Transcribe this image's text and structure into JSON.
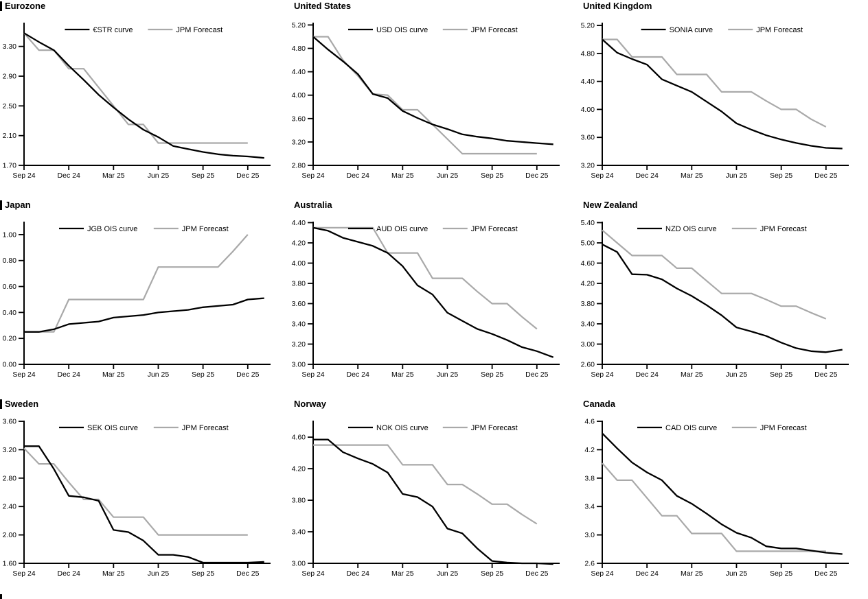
{
  "page": {
    "background": "#ffffff"
  },
  "colors": {
    "ois_line": "#000000",
    "forecast_line": "#a9a9a9",
    "axis": "#000000"
  },
  "chart_data": [
    {
      "type": "line",
      "title": "Eurozone",
      "section_bar": true,
      "x_tick_labels": [
        "Sep 24",
        "Dec 24",
        "Mar 25",
        "Jun 25",
        "Sep 25",
        "Dec 25"
      ],
      "x_monthly_range": "Sep 2024 to Dec 2025",
      "ylim": [
        1.7,
        3.62
      ],
      "y_ticks": [
        1.7,
        2.1,
        2.5,
        2.9,
        3.3
      ],
      "y_tick_decimals": 2,
      "legend_position": "top",
      "grid": false,
      "series": [
        {
          "name": "€STR curve",
          "color": "#000000",
          "monthly_values": [
            3.48,
            3.36,
            3.25,
            3.04,
            2.85,
            2.65,
            2.48,
            2.32,
            2.18,
            2.08,
            1.96,
            1.92,
            1.88,
            1.85,
            1.83,
            1.82
          ],
          "tail_value": 1.8
        },
        {
          "name": "JPM Forecast",
          "color": "#a9a9a9",
          "monthly_values": [
            3.48,
            3.25,
            3.25,
            3.0,
            3.0,
            2.75,
            2.5,
            2.25,
            2.25,
            2.0,
            2.0,
            2.0,
            2.0,
            2.0,
            2.0,
            2.0
          ]
        }
      ]
    },
    {
      "type": "line",
      "title": "United States",
      "section_bar": false,
      "x_tick_labels": [
        "Sep 24",
        "Dec 24",
        "Mar 25",
        "Jun 25",
        "Sep 25",
        "Dec 25"
      ],
      "x_monthly_range": "Sep 2024 to Dec 2025",
      "ylim": [
        2.8,
        5.24
      ],
      "y_ticks": [
        2.8,
        3.2,
        3.6,
        4.0,
        4.4,
        4.8,
        5.2
      ],
      "y_tick_decimals": 2,
      "legend_position": "top",
      "grid": false,
      "series": [
        {
          "name": "USD OIS curve",
          "color": "#000000",
          "monthly_values": [
            5.0,
            4.78,
            4.58,
            4.36,
            4.02,
            3.95,
            3.73,
            3.61,
            3.5,
            3.42,
            3.33,
            3.29,
            3.26,
            3.22,
            3.2,
            3.18
          ],
          "tail_value": 3.16
        },
        {
          "name": "JPM Forecast",
          "color": "#a9a9a9",
          "monthly_values": [
            5.0,
            5.0,
            4.6,
            4.33,
            4.02,
            4.0,
            3.75,
            3.75,
            3.5,
            3.25,
            3.0,
            3.0,
            3.0,
            3.0,
            3.0,
            3.0
          ]
        }
      ]
    },
    {
      "type": "line",
      "title": "United Kingdom",
      "section_bar": false,
      "x_tick_labels": [
        "Sep 24",
        "Dec 24",
        "Mar 25",
        "Jun 25",
        "Sep 25",
        "Dec 25"
      ],
      "x_monthly_range": "Sep 2024 to Dec 2025",
      "ylim": [
        3.2,
        5.24
      ],
      "y_ticks": [
        3.2,
        3.6,
        4.0,
        4.4,
        4.8,
        5.2
      ],
      "y_tick_decimals": 2,
      "legend_position": "top",
      "grid": false,
      "series": [
        {
          "name": "SONIA curve",
          "color": "#000000",
          "monthly_values": [
            5.0,
            4.81,
            4.72,
            4.64,
            4.43,
            4.34,
            4.25,
            4.11,
            3.97,
            3.8,
            3.71,
            3.63,
            3.57,
            3.52,
            3.48,
            3.45
          ],
          "tail_value": 3.44
        },
        {
          "name": "JPM Forecast",
          "color": "#a9a9a9",
          "monthly_values": [
            5.0,
            5.0,
            4.75,
            4.75,
            4.75,
            4.5,
            4.5,
            4.5,
            4.25,
            4.25,
            4.25,
            4.12,
            4.0,
            4.0,
            3.86,
            3.75
          ]
        }
      ]
    },
    {
      "type": "line",
      "title": "Japan",
      "section_bar": true,
      "x_tick_labels": [
        "Sep 24",
        "Dec 24",
        "Mar 25",
        "Jun 25",
        "Sep 25",
        "Dec 25"
      ],
      "x_monthly_range": "Sep 2024 to Dec 2025",
      "ylim": [
        0.0,
        1.1
      ],
      "y_ticks": [
        0.0,
        0.2,
        0.4,
        0.6,
        0.8,
        1.0
      ],
      "y_tick_decimals": 2,
      "legend_position": "top",
      "grid": false,
      "series": [
        {
          "name": "JGB OIS curve",
          "color": "#000000",
          "monthly_values": [
            0.25,
            0.25,
            0.27,
            0.31,
            0.32,
            0.33,
            0.36,
            0.37,
            0.38,
            0.4,
            0.41,
            0.42,
            0.44,
            0.45,
            0.46,
            0.5
          ],
          "tail_value": 0.51
        },
        {
          "name": "JPM Forecast",
          "color": "#a9a9a9",
          "monthly_values": [
            0.25,
            0.25,
            0.25,
            0.5,
            0.5,
            0.5,
            0.5,
            0.5,
            0.5,
            0.75,
            0.75,
            0.75,
            0.75,
            0.75,
            0.87,
            1.0
          ]
        }
      ]
    },
    {
      "type": "line",
      "title": "Australia",
      "section_bar": false,
      "x_tick_labels": [
        "Sep 24",
        "Dec 24",
        "Mar 25",
        "Jun 25",
        "Sep 25",
        "Dec 25"
      ],
      "x_monthly_range": "Sep 2024 to Dec 2025",
      "ylim": [
        3.0,
        4.41
      ],
      "y_ticks": [
        3.0,
        3.2,
        3.4,
        3.6,
        3.8,
        4.0,
        4.2,
        4.4
      ],
      "y_tick_decimals": 2,
      "legend_position": "top",
      "grid": false,
      "series": [
        {
          "name": "AUD OIS curve",
          "color": "#000000",
          "monthly_values": [
            4.35,
            4.32,
            4.25,
            4.21,
            4.17,
            4.1,
            3.97,
            3.78,
            3.69,
            3.51,
            3.43,
            3.35,
            3.3,
            3.24,
            3.17,
            3.13
          ],
          "tail_value": 3.07
        },
        {
          "name": "JPM Forecast",
          "color": "#a9a9a9",
          "monthly_values": [
            4.35,
            4.35,
            4.35,
            4.35,
            4.35,
            4.1,
            4.1,
            4.1,
            3.85,
            3.85,
            3.85,
            3.72,
            3.6,
            3.6,
            3.47,
            3.35
          ]
        }
      ]
    },
    {
      "type": "line",
      "title": "New Zealand",
      "section_bar": false,
      "x_tick_labels": [
        "Sep 24",
        "Dec 24",
        "Mar 25",
        "Jun 25",
        "Sep 25",
        "Dec 25"
      ],
      "x_monthly_range": "Sep 2024 to Dec 2025",
      "ylim": [
        2.6,
        5.42
      ],
      "y_ticks": [
        2.6,
        3.0,
        3.4,
        3.8,
        4.2,
        4.6,
        5.0,
        5.4
      ],
      "y_tick_decimals": 2,
      "legend_position": "top",
      "grid": false,
      "series": [
        {
          "name": "NZD OIS curve",
          "color": "#000000",
          "monthly_values": [
            4.97,
            4.82,
            4.38,
            4.37,
            4.28,
            4.1,
            3.95,
            3.77,
            3.57,
            3.33,
            3.25,
            3.16,
            3.03,
            2.92,
            2.86,
            2.84
          ],
          "tail_value": 2.89
        },
        {
          "name": "JPM Forecast",
          "color": "#a9a9a9",
          "monthly_values": [
            5.25,
            5.0,
            4.75,
            4.75,
            4.75,
            4.5,
            4.5,
            4.25,
            4.0,
            4.0,
            4.0,
            3.88,
            3.75,
            3.75,
            3.62,
            3.5
          ]
        }
      ]
    },
    {
      "type": "line",
      "title": "Sweden",
      "section_bar": true,
      "x_tick_labels": [
        "Sep 24",
        "Dec 24",
        "Mar 25",
        "Jun 25",
        "Sep 25",
        "Dec 25"
      ],
      "x_monthly_range": "Sep 2024 to Dec 2025",
      "ylim": [
        1.6,
        3.61
      ],
      "y_ticks": [
        1.6,
        2.0,
        2.4,
        2.8,
        3.2,
        3.6
      ],
      "y_tick_decimals": 2,
      "legend_position": "top",
      "grid": false,
      "series": [
        {
          "name": "SEK OIS curve",
          "color": "#000000",
          "monthly_values": [
            3.25,
            3.25,
            2.93,
            2.55,
            2.53,
            2.48,
            2.07,
            2.04,
            1.92,
            1.72,
            1.72,
            1.69,
            1.61,
            1.61,
            1.61,
            1.61
          ],
          "tail_value": 1.62
        },
        {
          "name": "JPM Forecast",
          "color": "#a9a9a9",
          "monthly_values": [
            3.22,
            3.0,
            3.0,
            2.74,
            2.5,
            2.5,
            2.25,
            2.25,
            2.25,
            2.0,
            2.0,
            2.0,
            2.0,
            2.0,
            2.0,
            2.0
          ]
        }
      ]
    },
    {
      "type": "line",
      "title": "Norway",
      "section_bar": false,
      "x_tick_labels": [
        "Sep 24",
        "Dec 24",
        "Mar 25",
        "Jun 25",
        "Sep 25",
        "Dec 25"
      ],
      "x_monthly_range": "Sep 2024 to Dec 2025",
      "ylim": [
        3.0,
        4.81
      ],
      "y_ticks": [
        3.0,
        3.4,
        3.8,
        4.2,
        4.6
      ],
      "y_tick_decimals": 2,
      "legend_position": "top",
      "grid": false,
      "series": [
        {
          "name": "NOK OIS curve",
          "color": "#000000",
          "monthly_values": [
            4.57,
            4.57,
            4.41,
            4.33,
            4.26,
            4.15,
            3.88,
            3.84,
            3.72,
            3.44,
            3.38,
            3.19,
            3.03,
            3.01,
            3.0,
            3.0
          ],
          "tail_value": 2.99
        },
        {
          "name": "JPM Forecast",
          "color": "#a9a9a9",
          "monthly_values": [
            4.5,
            4.5,
            4.5,
            4.5,
            4.5,
            4.5,
            4.25,
            4.25,
            4.25,
            4.0,
            4.0,
            3.88,
            3.75,
            3.75,
            3.62,
            3.5
          ]
        }
      ]
    },
    {
      "type": "line",
      "title": "Canada",
      "section_bar": false,
      "x_tick_labels": [
        "Sep 24",
        "Dec 24",
        "Mar 25",
        "Jun 25",
        "Sep 25",
        "Dec 25"
      ],
      "x_monthly_range": "Sep 2024 to Dec 2025",
      "ylim": [
        2.6,
        4.61
      ],
      "y_ticks": [
        2.6,
        3.0,
        3.4,
        3.8,
        4.2,
        4.6
      ],
      "y_tick_decimals": 1,
      "legend_position": "top",
      "grid": false,
      "series": [
        {
          "name": "CAD OIS curve",
          "color": "#000000",
          "monthly_values": [
            4.43,
            4.22,
            4.02,
            3.88,
            3.77,
            3.55,
            3.44,
            3.3,
            3.15,
            3.03,
            2.96,
            2.84,
            2.81,
            2.81,
            2.78,
            2.75
          ],
          "tail_value": 2.73
        },
        {
          "name": "JPM Forecast",
          "color": "#a9a9a9",
          "monthly_values": [
            4.01,
            3.77,
            3.77,
            3.52,
            3.27,
            3.27,
            3.02,
            3.02,
            3.02,
            2.77,
            2.77,
            2.77,
            2.77,
            2.77,
            2.77,
            2.77
          ]
        }
      ]
    }
  ]
}
